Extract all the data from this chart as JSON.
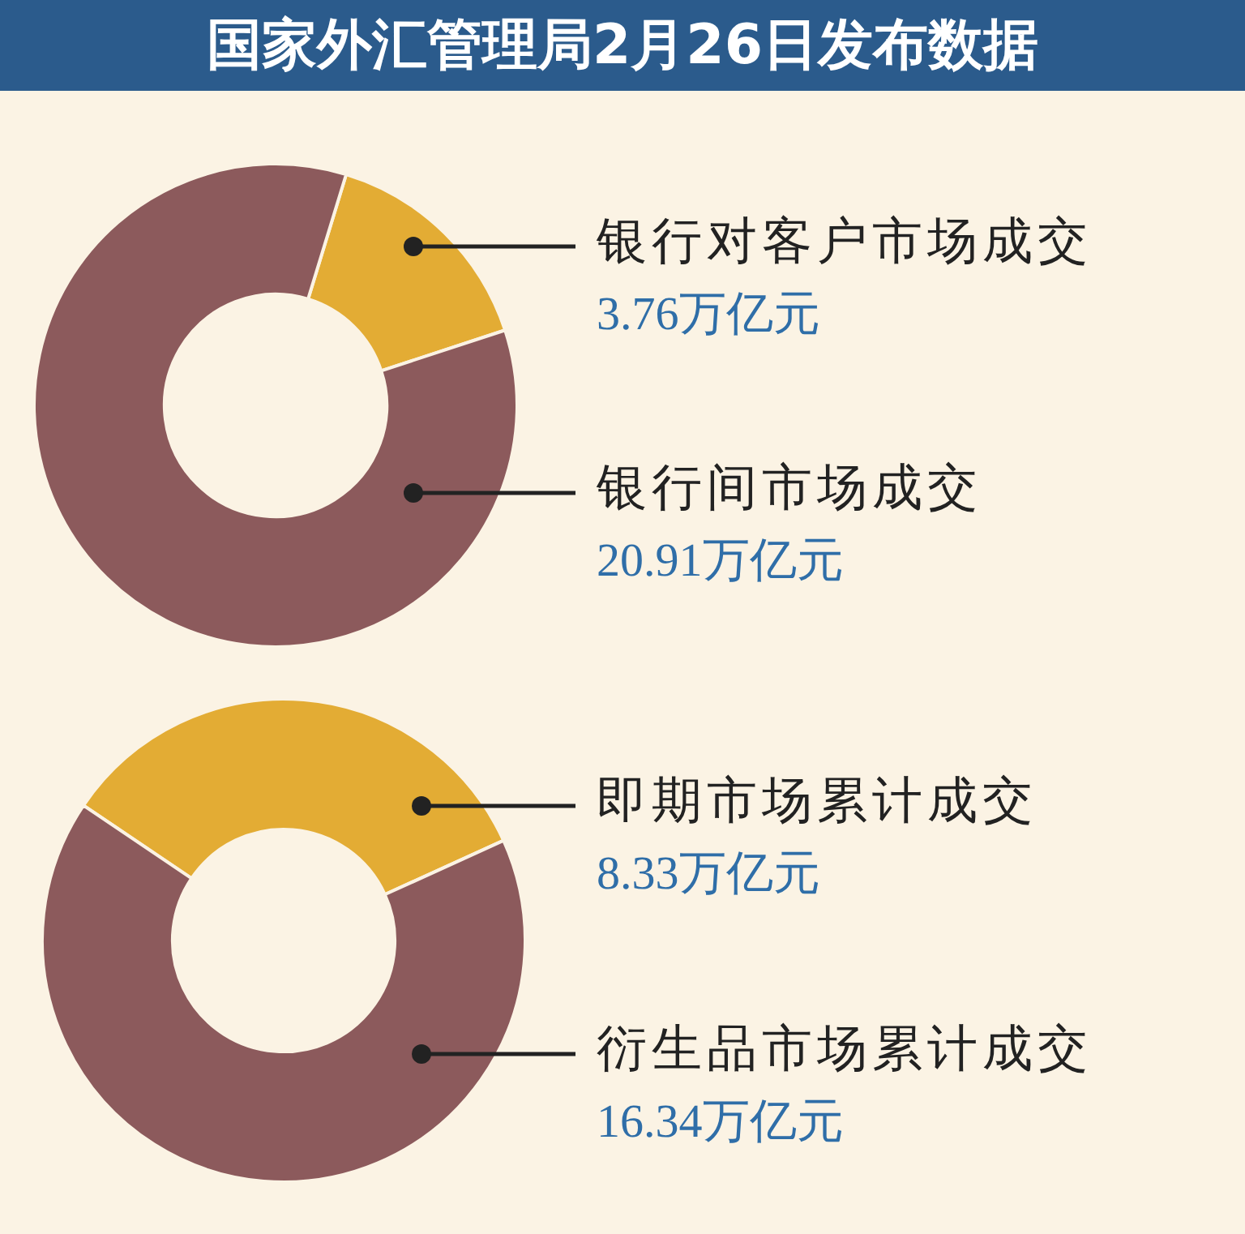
{
  "chart_data": [
    {
      "type": "donut",
      "title": "国家外汇管理局2月26日发布数据",
      "categories": [
        "银行对客户市场成交",
        "银行间市场成交"
      ],
      "values": [
        3.76,
        20.91
      ],
      "colors": [
        "#e3ac34",
        "#8c5a5c"
      ],
      "value_labels": [
        "3.76万亿元",
        "20.91万亿元"
      ]
    },
    {
      "type": "donut",
      "categories": [
        "即期市场累计成交",
        "衍生品市场累计成交"
      ],
      "values": [
        8.33,
        16.34
      ],
      "colors": [
        "#e3ac34",
        "#8c5a5c"
      ],
      "value_labels": [
        "8.33万亿元",
        "16.34万亿元"
      ]
    }
  ]
}
